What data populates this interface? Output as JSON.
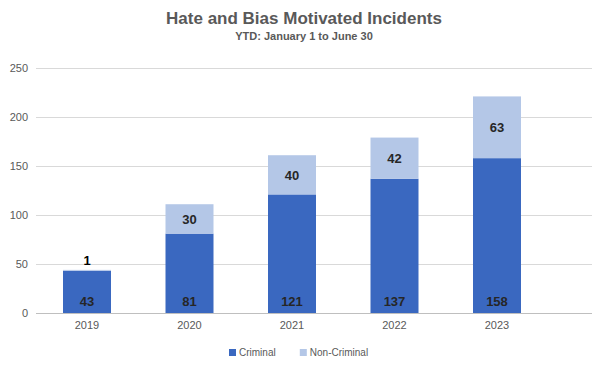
{
  "chart_data": {
    "type": "bar",
    "title": "Hate and Bias Motivated Incidents",
    "subtitle": "YTD: January 1 to June 30",
    "categories": [
      "2019",
      "2020",
      "2021",
      "2022",
      "2023"
    ],
    "series": [
      {
        "name": "Criminal",
        "color": "#3a68c0",
        "values": [
          43,
          81,
          121,
          137,
          158
        ]
      },
      {
        "name": "Non-Criminal",
        "color": "#b4c7e7",
        "values": [
          1,
          30,
          40,
          42,
          63
        ]
      }
    ],
    "ylim": [
      0,
      250
    ],
    "yticks": [
      0,
      50,
      100,
      150,
      200,
      250
    ],
    "grid": true,
    "stacked": true,
    "data_labels": true,
    "legend": "bottom"
  }
}
